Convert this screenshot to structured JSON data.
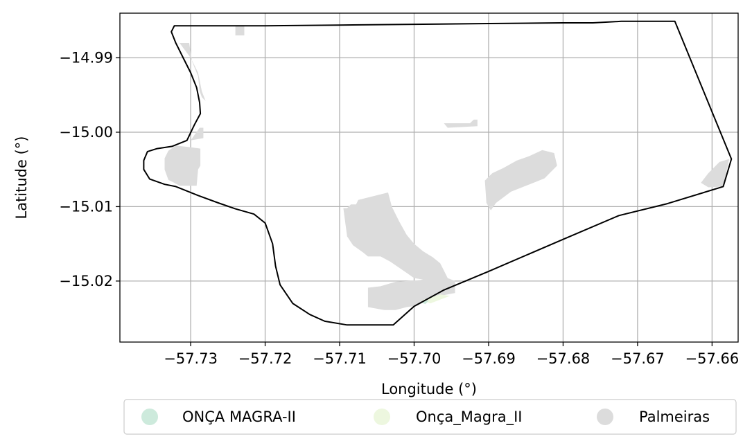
{
  "figure": {
    "xlabel": "Longitude (°)",
    "ylabel": "Latitude (°)"
  },
  "chart_data": {
    "type": "map",
    "xlim": [
      -57.7395,
      -57.6565
    ],
    "ylim": [
      -15.0282,
      -14.984
    ],
    "xticks": [
      {
        "value": -57.73,
        "label": "−57.73"
      },
      {
        "value": -57.72,
        "label": "−57.72"
      },
      {
        "value": -57.71,
        "label": "−57.71"
      },
      {
        "value": -57.7,
        "label": "−57.70"
      },
      {
        "value": -57.69,
        "label": "−57.69"
      },
      {
        "value": -57.68,
        "label": "−57.68"
      },
      {
        "value": -57.67,
        "label": "−57.67"
      },
      {
        "value": -57.66,
        "label": "−57.66"
      }
    ],
    "yticks": [
      {
        "value": -14.99,
        "label": "−14.99"
      },
      {
        "value": -15.0,
        "label": "−15.00"
      },
      {
        "value": -15.01,
        "label": "−15.01"
      },
      {
        "value": -15.02,
        "label": "−15.02"
      }
    ],
    "grid": true,
    "legend_position": "bottom",
    "legend": [
      {
        "label": "ONÇA MAGRA-II",
        "color": "#cdeadc"
      },
      {
        "label": "Onça_Magra_II",
        "color": "#edf7df"
      },
      {
        "label": "Palmeiras",
        "color": "#dcdcdc"
      }
    ],
    "boundary": {
      "stroke": "#000000",
      "coords": [
        [
          -57.7322,
          -14.9857
        ],
        [
          -57.729,
          -14.9857
        ],
        [
          -57.72,
          -14.9857
        ],
        [
          -57.71,
          -14.9856
        ],
        [
          -57.7,
          -14.9855
        ],
        [
          -57.69,
          -14.9854
        ],
        [
          -57.68,
          -14.9853
        ],
        [
          -57.676,
          -14.9853
        ],
        [
          -57.6722,
          -14.9851
        ],
        [
          -57.665,
          -14.9851
        ],
        [
          -57.6574,
          -15.0036
        ],
        [
          -57.6585,
          -15.0073
        ],
        [
          -57.666,
          -15.0096
        ],
        [
          -57.6725,
          -15.0112
        ],
        [
          -57.68,
          -15.0144
        ],
        [
          -57.69,
          -15.0187
        ],
        [
          -57.696,
          -15.0212
        ],
        [
          -57.7,
          -15.0234
        ],
        [
          -57.7028,
          -15.0259
        ],
        [
          -57.706,
          -15.0259
        ],
        [
          -57.709,
          -15.0259
        ],
        [
          -57.712,
          -15.0254
        ],
        [
          -57.714,
          -15.0245
        ],
        [
          -57.7163,
          -15.023
        ],
        [
          -57.718,
          -15.0205
        ],
        [
          -57.7186,
          -15.018
        ],
        [
          -57.719,
          -15.015
        ],
        [
          -57.72,
          -15.0122
        ],
        [
          -57.7215,
          -15.011
        ],
        [
          -57.724,
          -15.0103
        ],
        [
          -57.7263,
          -15.0095
        ],
        [
          -57.729,
          -15.0085
        ],
        [
          -57.732,
          -15.0073
        ],
        [
          -57.7335,
          -15.007
        ],
        [
          -57.7355,
          -15.0063
        ],
        [
          -57.7363,
          -15.005
        ],
        [
          -57.7363,
          -15.0038
        ],
        [
          -57.7358,
          -15.0026
        ],
        [
          -57.7345,
          -15.0022
        ],
        [
          -57.7325,
          -15.0019
        ],
        [
          -57.7305,
          -15.0011
        ],
        [
          -57.7295,
          -14.999
        ],
        [
          -57.7287,
          -14.9975
        ],
        [
          -57.7288,
          -14.996
        ],
        [
          -57.7292,
          -14.994
        ],
        [
          -57.73,
          -14.992
        ],
        [
          -57.731,
          -14.99
        ],
        [
          -57.732,
          -14.988
        ],
        [
          -57.7326,
          -14.9865
        ],
        [
          -57.7322,
          -14.9857
        ]
      ]
    },
    "polygons": [
      {
        "name": "Palmeiras",
        "color": "#dcdcdc",
        "coords": [
          [
            -57.7035,
            -15.0081
          ],
          [
            -57.7055,
            -15.0086
          ],
          [
            -57.7075,
            -15.0091
          ],
          [
            -57.7078,
            -15.0097
          ],
          [
            -57.7085,
            -15.0097
          ],
          [
            -57.709,
            -15.0102
          ],
          [
            -57.7095,
            -15.0102
          ],
          [
            -57.709,
            -15.014
          ],
          [
            -57.7082,
            -15.0152
          ],
          [
            -57.7068,
            -15.0162
          ],
          [
            -57.7062,
            -15.0167
          ],
          [
            -57.7045,
            -15.0167
          ],
          [
            -57.7032,
            -15.0174
          ],
          [
            -57.701,
            -15.0189
          ],
          [
            -57.7,
            -15.0196
          ],
          [
            -57.6988,
            -15.0198
          ],
          [
            -57.6995,
            -15.0199
          ],
          [
            -57.7025,
            -15.0201
          ],
          [
            -57.7045,
            -15.0207
          ],
          [
            -57.7062,
            -15.0209
          ],
          [
            -57.7062,
            -15.0235
          ],
          [
            -57.704,
            -15.0239
          ],
          [
            -57.7025,
            -15.0239
          ],
          [
            -57.701,
            -15.0235
          ],
          [
            -57.6995,
            -15.0233
          ],
          [
            -57.6985,
            -15.0227
          ],
          [
            -57.696,
            -15.0219
          ],
          [
            -57.6945,
            -15.0216
          ],
          [
            -57.6945,
            -15.02
          ],
          [
            -57.6955,
            -15.0196
          ],
          [
            -57.696,
            -15.0186
          ],
          [
            -57.6965,
            -15.0176
          ],
          [
            -57.6975,
            -15.0168
          ],
          [
            -57.6988,
            -15.016
          ],
          [
            -57.7,
            -15.015
          ],
          [
            -57.701,
            -15.0138
          ],
          [
            -57.702,
            -15.012
          ],
          [
            -57.703,
            -15.01
          ],
          [
            -57.7035,
            -15.0081
          ]
        ]
      },
      {
        "name": "Palmeiras",
        "color": "#dcdcdc",
        "coords": [
          [
            -57.6828,
            -15.0024
          ],
          [
            -57.6812,
            -15.0028
          ],
          [
            -57.6808,
            -15.0045
          ],
          [
            -57.6825,
            -15.0062
          ],
          [
            -57.6845,
            -15.007
          ],
          [
            -57.687,
            -15.008
          ],
          [
            -57.689,
            -15.0095
          ],
          [
            -57.6897,
            -15.0105
          ],
          [
            -57.6903,
            -15.0095
          ],
          [
            -57.6905,
            -15.0065
          ],
          [
            -57.6895,
            -15.0055
          ],
          [
            -57.688,
            -15.0048
          ],
          [
            -57.6862,
            -15.0038
          ],
          [
            -57.6845,
            -15.0032
          ],
          [
            -57.6828,
            -15.0024
          ]
        ]
      },
      {
        "name": "Palmeiras",
        "color": "#dcdcdc",
        "coords": [
          [
            -57.6955,
            -14.9994
          ],
          [
            -57.696,
            -14.9988
          ],
          [
            -57.6925,
            -14.9988
          ],
          [
            -57.692,
            -14.9983
          ],
          [
            -57.6915,
            -14.9983
          ],
          [
            -57.6915,
            -14.9992
          ],
          [
            -57.6955,
            -14.9994
          ]
        ]
      },
      {
        "name": "Palmeiras",
        "color": "#dcdcdc",
        "coords": [
          [
            -57.733,
            -15.0025
          ],
          [
            -57.732,
            -15.0018
          ],
          [
            -57.7302,
            -15.002
          ],
          [
            -57.7287,
            -15.0022
          ],
          [
            -57.7287,
            -15.0045
          ],
          [
            -57.729,
            -15.005
          ],
          [
            -57.7292,
            -15.0072
          ],
          [
            -57.7315,
            -15.0072
          ],
          [
            -57.7322,
            -15.0068
          ],
          [
            -57.733,
            -15.0064
          ],
          [
            -57.7335,
            -15.005
          ],
          [
            -57.7335,
            -15.0035
          ],
          [
            -57.733,
            -15.0025
          ]
        ]
      },
      {
        "name": "Palmeiras",
        "color": "#dcdcdc",
        "coords": [
          [
            -57.73,
            -15.0011
          ],
          [
            -57.7288,
            -14.9994
          ],
          [
            -57.7283,
            -14.9994
          ],
          [
            -57.7283,
            -15.0008
          ],
          [
            -57.73,
            -15.0011
          ]
        ]
      },
      {
        "name": "Palmeiras",
        "color": "#dcdcdc",
        "coords": [
          [
            -57.7315,
            -14.988
          ],
          [
            -57.7302,
            -14.988
          ],
          [
            -57.7298,
            -14.9905
          ],
          [
            -57.729,
            -14.9925
          ],
          [
            -57.7288,
            -14.9945
          ],
          [
            -57.7285,
            -14.9953
          ],
          [
            -57.728,
            -14.9958
          ],
          [
            -57.7285,
            -14.9945
          ],
          [
            -57.729,
            -14.992
          ],
          [
            -57.73,
            -14.99
          ],
          [
            -57.7315,
            -14.988
          ]
        ]
      },
      {
        "name": "Palmeiras",
        "color": "#dcdcdc",
        "coords": [
          [
            -57.724,
            -14.9857
          ],
          [
            -57.7228,
            -14.9857
          ],
          [
            -57.7228,
            -14.987
          ],
          [
            -57.724,
            -14.987
          ],
          [
            -57.724,
            -14.9857
          ]
        ]
      },
      {
        "name": "Palmeiras",
        "color": "#dcdcdc",
        "coords": [
          [
            -57.6577,
            -15.0036
          ],
          [
            -57.659,
            -15.004
          ],
          [
            -57.6605,
            -15.0055
          ],
          [
            -57.6615,
            -15.0068
          ],
          [
            -57.6605,
            -15.0074
          ],
          [
            -57.6585,
            -15.0073
          ],
          [
            -57.6577,
            -15.0036
          ]
        ]
      },
      {
        "name": "Onça_Magra_II",
        "color": "#edf7df",
        "coords": [
          [
            -57.699,
            -15.0226
          ],
          [
            -57.6965,
            -15.0218
          ],
          [
            -57.6952,
            -15.022
          ],
          [
            -57.6978,
            -15.023
          ],
          [
            -57.699,
            -15.0226
          ]
        ]
      },
      {
        "name": "ONÇA MAGRA-II",
        "color": "#cdeadc",
        "coords": [
          [
            -57.6992,
            -15.0228
          ],
          [
            -57.698,
            -15.0226
          ],
          [
            -57.6985,
            -15.0231
          ],
          [
            -57.6992,
            -15.0228
          ]
        ]
      }
    ]
  }
}
